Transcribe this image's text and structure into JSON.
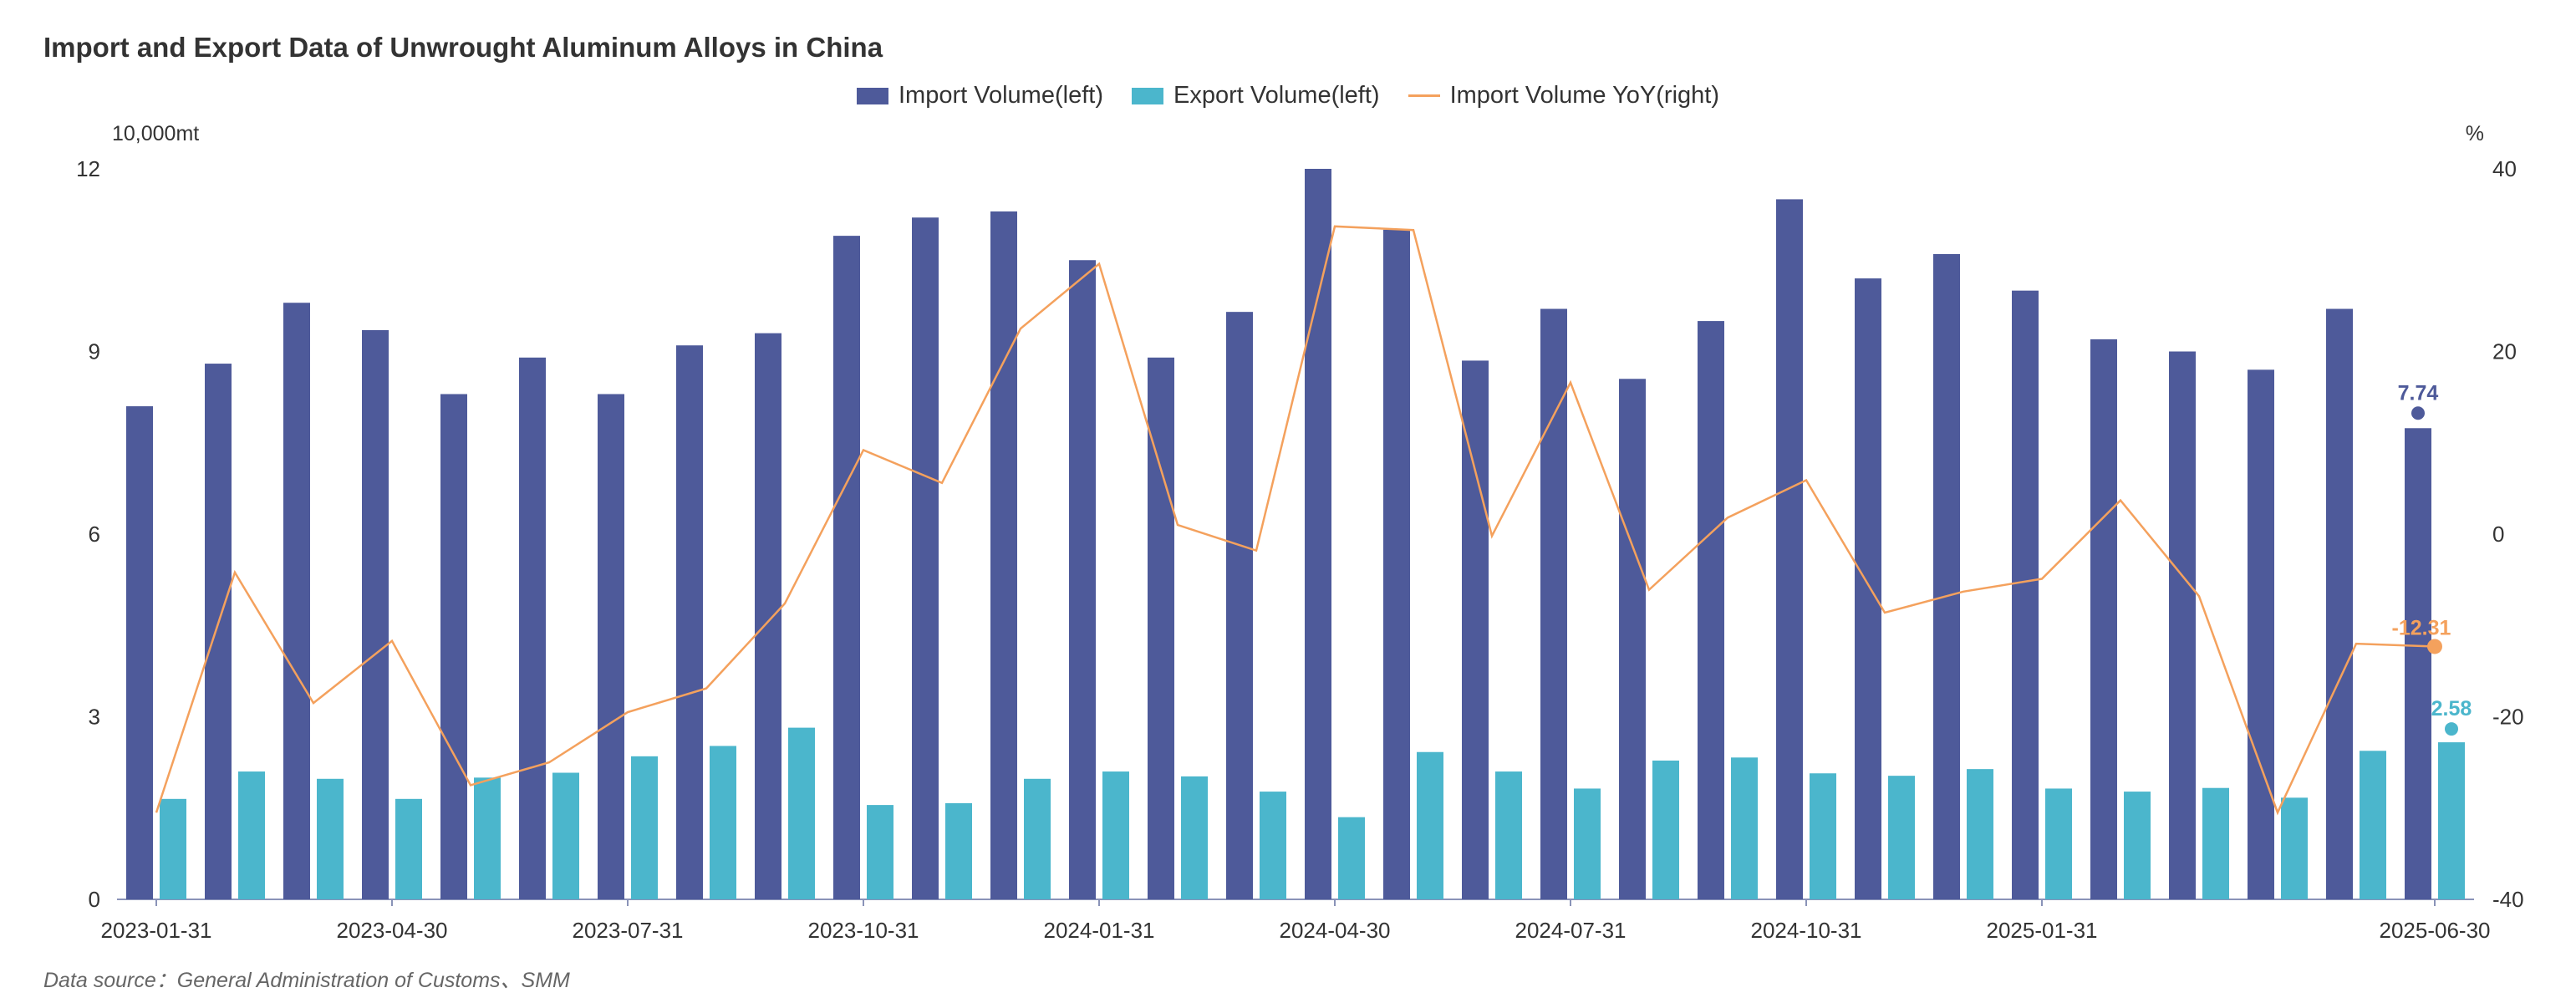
{
  "title": "Import and Export Data of Unwrought Aluminum Alloys in China",
  "source": "Data source：General Administration of Customs、SMM",
  "chart_data": {
    "type": "bar",
    "title": "Import and Export Data of Unwrought Aluminum Alloys in China",
    "left_axis_unit": "10,000mt",
    "right_axis_unit": "%",
    "ylim_left": [
      0,
      12
    ],
    "ylim_right": [
      -40,
      40
    ],
    "yticks_left": [
      "0",
      "3",
      "6",
      "9",
      "12"
    ],
    "yticks_right": [
      "-40",
      "-20",
      "0",
      "20",
      "40"
    ],
    "x": [
      "2023-01-31",
      "2023-02-28",
      "2023-03-31",
      "2023-04-30",
      "2023-05-31",
      "2023-06-30",
      "2023-07-31",
      "2023-08-31",
      "2023-09-30",
      "2023-10-31",
      "2023-11-30",
      "2023-12-31",
      "2024-01-31",
      "2024-02-29",
      "2024-03-31",
      "2024-04-30",
      "2024-05-31",
      "2024-06-30",
      "2024-07-31",
      "2024-08-31",
      "2024-09-30",
      "2024-10-31",
      "2024-11-30",
      "2024-12-31",
      "2025-01-31",
      "2025-02-28",
      "2025-03-31",
      "2025-04-30",
      "2025-05-31",
      "2025-06-30"
    ],
    "x_tick_labels": [
      "2023-01-31",
      "2023-04-30",
      "2023-07-31",
      "2023-10-31",
      "2024-01-31",
      "2024-04-30",
      "2024-07-31",
      "2024-10-31",
      "2025-01-31",
      "2025-06-30"
    ],
    "legend_position": "top-center",
    "grid": false,
    "series": [
      {
        "name": "Import Volume(left)",
        "type": "bar",
        "axis": "left",
        "color": "#4e5a9a",
        "values": [
          8.1,
          8.8,
          9.8,
          9.35,
          8.3,
          8.9,
          8.3,
          9.1,
          9.3,
          10.9,
          11.2,
          11.3,
          10.5,
          8.9,
          9.65,
          12.0,
          11.0,
          8.85,
          9.7,
          8.55,
          9.5,
          11.5,
          10.2,
          10.6,
          10.0,
          9.2,
          9.0,
          8.7,
          9.7,
          7.74
        ]
      },
      {
        "name": "Export Volume(left)",
        "type": "bar",
        "axis": "left",
        "color": "#4bb6cc",
        "values": [
          1.65,
          2.1,
          1.98,
          1.65,
          2.0,
          2.08,
          2.35,
          2.52,
          2.82,
          1.55,
          1.58,
          1.98,
          2.1,
          2.02,
          1.77,
          1.35,
          2.42,
          2.1,
          1.82,
          2.28,
          2.33,
          2.07,
          2.03,
          2.14,
          1.82,
          1.77,
          1.83,
          1.67,
          2.44,
          2.58
        ]
      },
      {
        "name": "Import Volume YoY(right)",
        "type": "line",
        "axis": "right",
        "color": "#f4a15d",
        "values": [
          -30.5,
          -4.2,
          -18.5,
          -11.7,
          -27.5,
          -25.0,
          -19.5,
          -16.9,
          -7.6,
          9.2,
          5.6,
          22.5,
          29.6,
          1.0,
          -1.8,
          33.7,
          33.3,
          -0.2,
          16.6,
          -6.1,
          1.8,
          5.9,
          -8.6,
          -6.3,
          -4.9,
          3.7,
          -6.8,
          -30.5,
          -12.0,
          -12.31
        ]
      }
    ],
    "annotations": [
      {
        "series": "Import Volume(left)",
        "x": "2025-06-30",
        "label": "7.74"
      },
      {
        "series": "Export Volume(left)",
        "x": "2025-06-30",
        "label": "2.58"
      },
      {
        "series": "Import Volume YoY(right)",
        "x": "2025-06-30",
        "label": "-12.31"
      }
    ]
  }
}
